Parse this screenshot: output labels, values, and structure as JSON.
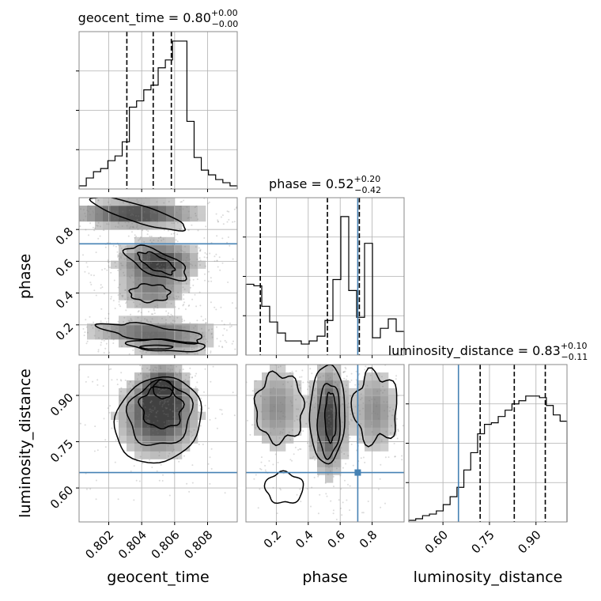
{
  "chart_data": {
    "type": "corner",
    "parameters": [
      "geocent_time",
      "phase",
      "luminosity_distance"
    ],
    "titles": {
      "geocent_time": {
        "name": "geocent_time",
        "median": "0.80",
        "plus": "+0.00",
        "minus": "−0.00"
      },
      "phase": {
        "name": "phase",
        "median": "0.52",
        "plus": "+0.20",
        "minus": "−0.42"
      },
      "luminosity_distance": {
        "name": "luminosity_distance",
        "median": "0.83",
        "plus": "+0.10",
        "minus": "−0.11"
      }
    },
    "axis_labels": {
      "geocent_time": "geocent_time",
      "phase": "phase",
      "luminosity_distance": "luminosity_distance"
    },
    "ranges": {
      "geocent_time": [
        0.8002,
        0.8098
      ],
      "phase": [
        0.01,
        1.0
      ],
      "luminosity_distance": [
        0.49,
        1.0
      ]
    },
    "ticks": {
      "geocent_time": [
        {
          "v": 0.802,
          "label": "0.802"
        },
        {
          "v": 0.804,
          "label": "0.804"
        },
        {
          "v": 0.806,
          "label": "0.806"
        },
        {
          "v": 0.808,
          "label": "0.808"
        }
      ],
      "phase": [
        {
          "v": 0.2,
          "label": "0.2"
        },
        {
          "v": 0.4,
          "label": "0.4"
        },
        {
          "v": 0.6,
          "label": "0.6"
        },
        {
          "v": 0.8,
          "label": "0.8"
        }
      ],
      "luminosity_distance": [
        {
          "v": 0.6,
          "label": "0.60"
        },
        {
          "v": 0.75,
          "label": "0.75"
        },
        {
          "v": 0.9,
          "label": "0.90"
        }
      ]
    },
    "quantiles": {
      "geocent_time": [
        0.8031,
        0.8047,
        0.8058
      ],
      "phase": [
        0.1,
        0.52,
        0.72
      ],
      "luminosity_distance": [
        0.72,
        0.83,
        0.93
      ]
    },
    "truths": {
      "phase": 0.71,
      "luminosity_distance": 0.65
    },
    "histograms": {
      "geocent_time": [
        0.02,
        0.07,
        0.11,
        0.13,
        0.18,
        0.21,
        0.3,
        0.52,
        0.56,
        0.63,
        0.66,
        0.77,
        0.82,
        0.94,
        0.94,
        0.43,
        0.2,
        0.12,
        0.09,
        0.06,
        0.04,
        0.02
      ],
      "phase": [
        0.45,
        0.44,
        0.31,
        0.21,
        0.14,
        0.09,
        0.09,
        0.07,
        0.09,
        0.12,
        0.22,
        0.48,
        0.88,
        0.41,
        0.24,
        0.71,
        0.11,
        0.17,
        0.23,
        0.15
      ],
      "luminosity_distance": [
        0.01,
        0.02,
        0.04,
        0.05,
        0.07,
        0.11,
        0.16,
        0.22,
        0.33,
        0.44,
        0.56,
        0.62,
        0.63,
        0.67,
        0.71,
        0.75,
        0.77,
        0.8,
        0.8,
        0.79,
        0.74,
        0.68,
        0.64
      ]
    },
    "grid": true,
    "colors": {
      "truth": "#4682b4",
      "hist": "#000000",
      "grid": "#b0b0b0",
      "scatter": "#7f7f7f"
    }
  }
}
